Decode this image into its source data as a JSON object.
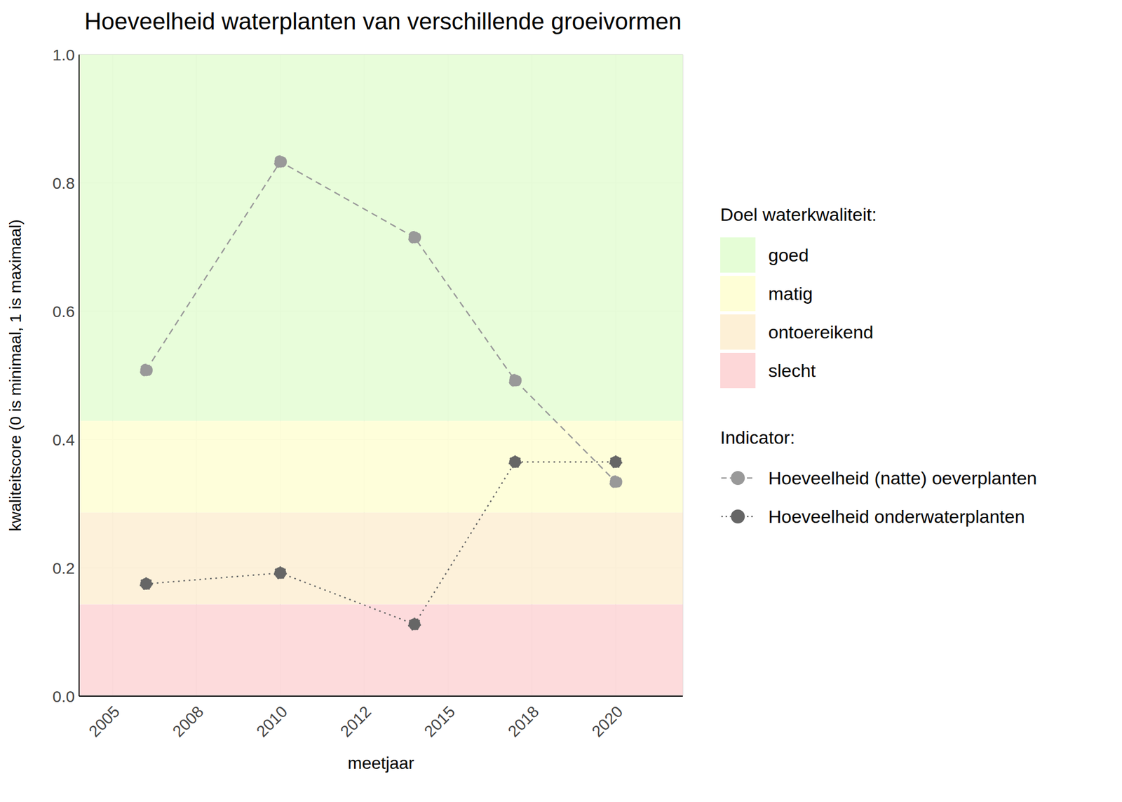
{
  "chart_data": {
    "type": "line",
    "title": "Hoeveelheid waterplanten van verschillende groeivormen",
    "x_label": "meetjaar",
    "y_label": "kwaliteitscore (0 is minimaal, 1 is maximaal)",
    "x": [
      2006,
      2010,
      2014,
      2017,
      2020
    ],
    "series": [
      {
        "name": "Hoeveelheid (natte) oeverplanten",
        "color": "#999999",
        "marker": "circle",
        "line_style": "dashed",
        "values": [
          0.508,
          0.833,
          0.715,
          0.492,
          0.334
        ]
      },
      {
        "name": "Hoeveelheid onderwaterplanten",
        "color": "#666666",
        "marker": "circle",
        "line_style": "dotted",
        "values": [
          0.175,
          0.192,
          0.112,
          0.365,
          0.365
        ]
      }
    ],
    "xlim": [
      2004,
      2022
    ],
    "xticks": [
      2005,
      {
        "value": 2007.5,
        "label": "2008"
      },
      2010,
      {
        "value": 2012.5,
        "label": "2012"
      },
      2015,
      {
        "value": 2017.5,
        "label": "2018"
      },
      2020
    ],
    "ylim": [
      0,
      1
    ],
    "yticks": [
      {
        "value": 0,
        "label": "0.0"
      },
      0.2,
      0.4,
      0.6,
      0.8,
      {
        "value": 1,
        "label": "1.0"
      }
    ],
    "grid": true,
    "legend": "right",
    "legend_title": "Indicator:",
    "bands_title": "Doel waterkwaliteit:",
    "bands": [
      {
        "name": "goed",
        "color": "#e5fdd6",
        "from": 0.429,
        "to": 1
      },
      {
        "name": "matig",
        "color": "#fefed6",
        "from": 0.286,
        "to": 0.429
      },
      {
        "name": "ontoereikend",
        "color": "#fdf0d6",
        "from": 0.143,
        "to": 0.286
      },
      {
        "name": "slecht",
        "color": "#fdd7d8",
        "from": 0,
        "to": 0.143
      }
    ]
  }
}
